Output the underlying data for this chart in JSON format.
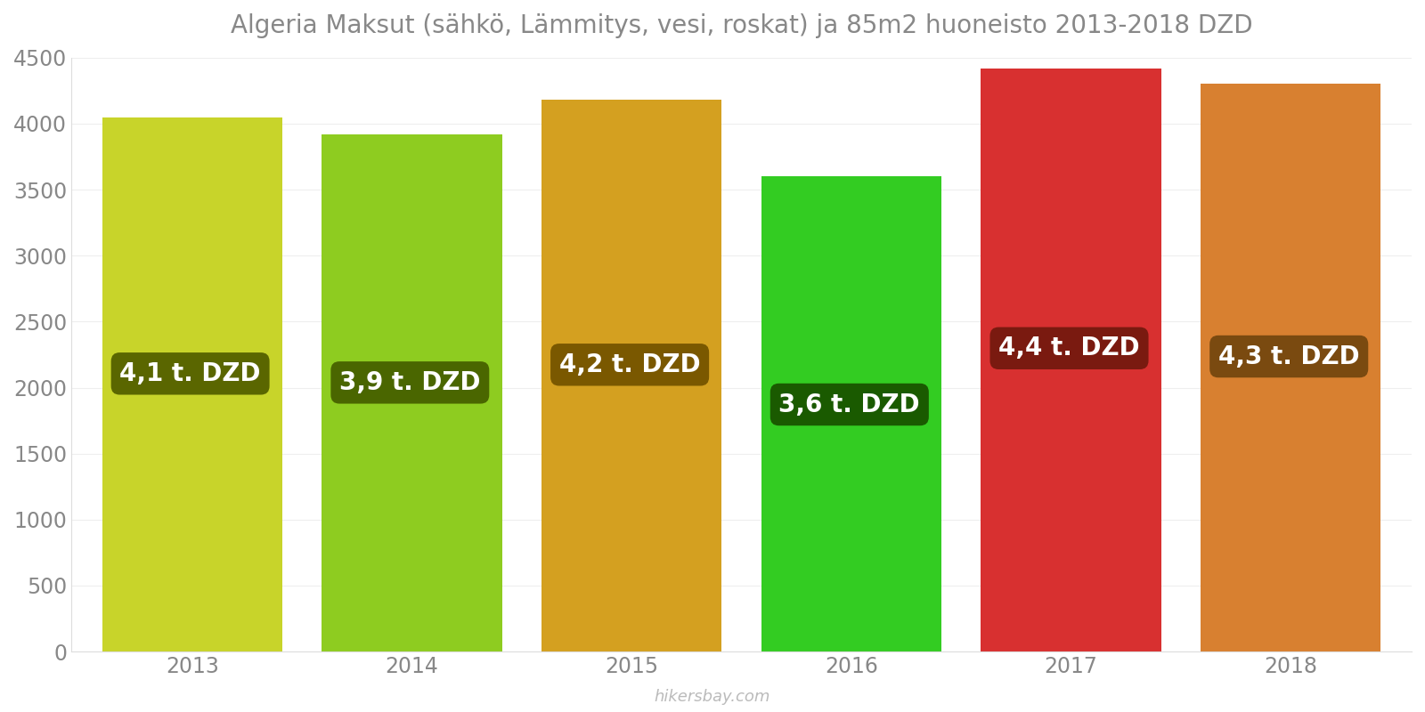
{
  "title": "Algeria Maksut (sähkö, Lämmitys, vesi, roskat) ja 85m2 huoneisto 2013-2018 DZD",
  "years": [
    2013,
    2014,
    2015,
    2016,
    2017,
    2018
  ],
  "values": [
    4050,
    3920,
    4180,
    3600,
    4420,
    4300
  ],
  "labels": [
    "4,1 t. DZD",
    "3,9 t. DZD",
    "4,2 t. DZD",
    "3,6 t. DZD",
    "4,4 t. DZD",
    "4,3 t. DZD"
  ],
  "bar_colors": [
    "#c8d42a",
    "#8ecc20",
    "#d4a020",
    "#33cc22",
    "#d83030",
    "#d88030"
  ],
  "label_box_colors": [
    "#5a6600",
    "#4a6600",
    "#7a5800",
    "#1a5a00",
    "#7a1a10",
    "#7a4a10"
  ],
  "ylim": [
    0,
    4500
  ],
  "yticks": [
    0,
    500,
    1000,
    1500,
    2000,
    2500,
    3000,
    3500,
    4000,
    4500
  ],
  "title_fontsize": 20,
  "label_fontsize": 20,
  "tick_fontsize": 17,
  "watermark": "hikersbay.com",
  "background_color": "#ffffff",
  "label_text_color": "#ffffff",
  "bar_width": 0.82
}
